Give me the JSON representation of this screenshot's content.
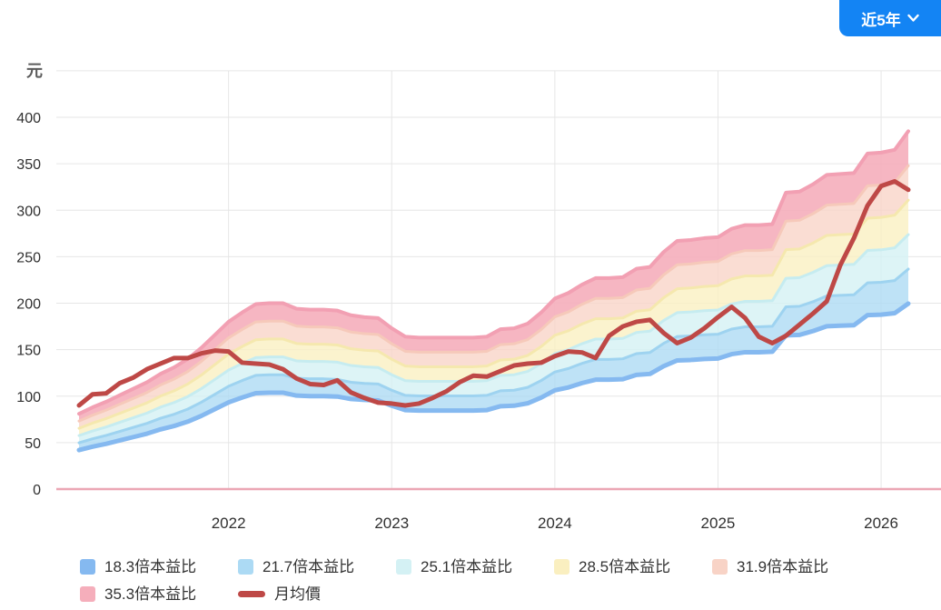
{
  "period_button": {
    "label": "近5年"
  },
  "y_axis": {
    "unit": "元",
    "ticks": [
      "400",
      "350",
      "300",
      "250",
      "200",
      "150",
      "100",
      "50",
      "0"
    ]
  },
  "x_axis": {
    "years": [
      "2022",
      "2023",
      "2024",
      "2025",
      "2026"
    ]
  },
  "legend": {
    "items": [
      {
        "label": "18.3倍本益比",
        "color": "#85B9F0",
        "marker": "chip"
      },
      {
        "label": "21.7倍本益比",
        "color": "#ACDAF4",
        "marker": "chip"
      },
      {
        "label": "25.1倍本益比",
        "color": "#D4F1F4",
        "marker": "chip"
      },
      {
        "label": "28.5倍本益比",
        "color": "#FAEFC0",
        "marker": "chip"
      },
      {
        "label": "31.9倍本益比",
        "color": "#F8D3C6",
        "marker": "chip"
      },
      {
        "label": "35.3倍本益比",
        "color": "#F5AEBB",
        "marker": "chip"
      },
      {
        "label": "月均價",
        "color": "#BE4846",
        "marker": "dash"
      }
    ]
  },
  "colors": {
    "accent_blue": "#1384F4",
    "price_line": "#BE4846",
    "grid": "#e6e6e6",
    "zero_axis": "#EBA6B4",
    "tick_text": "#303030",
    "unit_text": "#5a5a5a",
    "band_strokes": [
      "#85B9F0",
      "#9ED3F0",
      "#C6ECF0",
      "#F5E8AE",
      "#F6C9BA",
      "#F2A0B3"
    ],
    "band_fills": [
      "#ACDAF4",
      "#D4F1F4",
      "#FAEFC0",
      "#F8D3C6",
      "#F5AEBB"
    ]
  },
  "chart_data": {
    "type": "area",
    "title": "",
    "xlabel": "",
    "ylabel": "元",
    "ylim": [
      0,
      450
    ],
    "y_ticks": [
      0,
      50,
      100,
      150,
      200,
      250,
      300,
      350,
      400
    ],
    "grid": true,
    "legend_position": "bottom",
    "pe_multiples": [
      18.3,
      21.7,
      25.1,
      28.5,
      31.9,
      35.3
    ],
    "band_rule": "boundary_k(i) = pe_top_35_3[i] * multiple_k / 35.3 ; colored band fills between consecutive boundaries; 月均價 is the red price line",
    "months": [
      "2021-02",
      "2021-03",
      "2021-04",
      "2021-05",
      "2021-06",
      "2021-07",
      "2021-08",
      "2021-09",
      "2021-10",
      "2021-11",
      "2021-12",
      "2022-01",
      "2022-02",
      "2022-03",
      "2022-04",
      "2022-05",
      "2022-06",
      "2022-07",
      "2022-08",
      "2022-09",
      "2022-10",
      "2022-11",
      "2022-12",
      "2023-01",
      "2023-02",
      "2023-03",
      "2023-04",
      "2023-05",
      "2023-06",
      "2023-07",
      "2023-08",
      "2023-09",
      "2023-10",
      "2023-11",
      "2023-12",
      "2024-01",
      "2024-02",
      "2024-03",
      "2024-04",
      "2024-05",
      "2024-06",
      "2024-07",
      "2024-08",
      "2024-09",
      "2024-10",
      "2024-11",
      "2024-12",
      "2025-01",
      "2025-02",
      "2025-03",
      "2025-04",
      "2025-05",
      "2025-06",
      "2025-07",
      "2025-08",
      "2025-09",
      "2025-10",
      "2025-11",
      "2025-12",
      "2026-01",
      "2026-02",
      "2026-03"
    ],
    "year_tick_indices": [
      11,
      23,
      35,
      47,
      59
    ],
    "series": [
      {
        "name": "月均價",
        "type": "line",
        "color": "#BE4846",
        "values": [
          90,
          102,
          103,
          114,
          120,
          129,
          135,
          141,
          141,
          146,
          149,
          148,
          136,
          135,
          134,
          129,
          119,
          113,
          112,
          117,
          104,
          98,
          93,
          92,
          90,
          92,
          98,
          105,
          115,
          122,
          121,
          127,
          133,
          135,
          136,
          143,
          148,
          147,
          141,
          165,
          175,
          180,
          182,
          168,
          157,
          163,
          173,
          185,
          196,
          184,
          164,
          157,
          165,
          177,
          189,
          202,
          241,
          270,
          305,
          326,
          331,
          322
        ]
      },
      {
        "name": "35.3倍本益比上緣",
        "type": "band-top",
        "color": "#F5AEBB",
        "values": [
          81,
          88,
          94,
          101,
          108,
          115,
          124,
          131,
          140,
          152,
          166,
          180,
          190,
          199,
          200,
          200,
          194,
          193,
          193,
          192,
          187,
          185,
          184,
          173,
          164,
          163,
          163,
          163,
          163,
          163,
          164,
          172,
          173,
          178,
          190,
          205,
          211,
          220,
          227,
          227,
          228,
          237,
          239,
          255,
          267,
          268,
          270,
          271,
          280,
          284,
          284,
          285,
          319,
          320,
          328,
          338,
          339,
          340,
          361,
          362,
          365,
          385
        ]
      }
    ]
  }
}
